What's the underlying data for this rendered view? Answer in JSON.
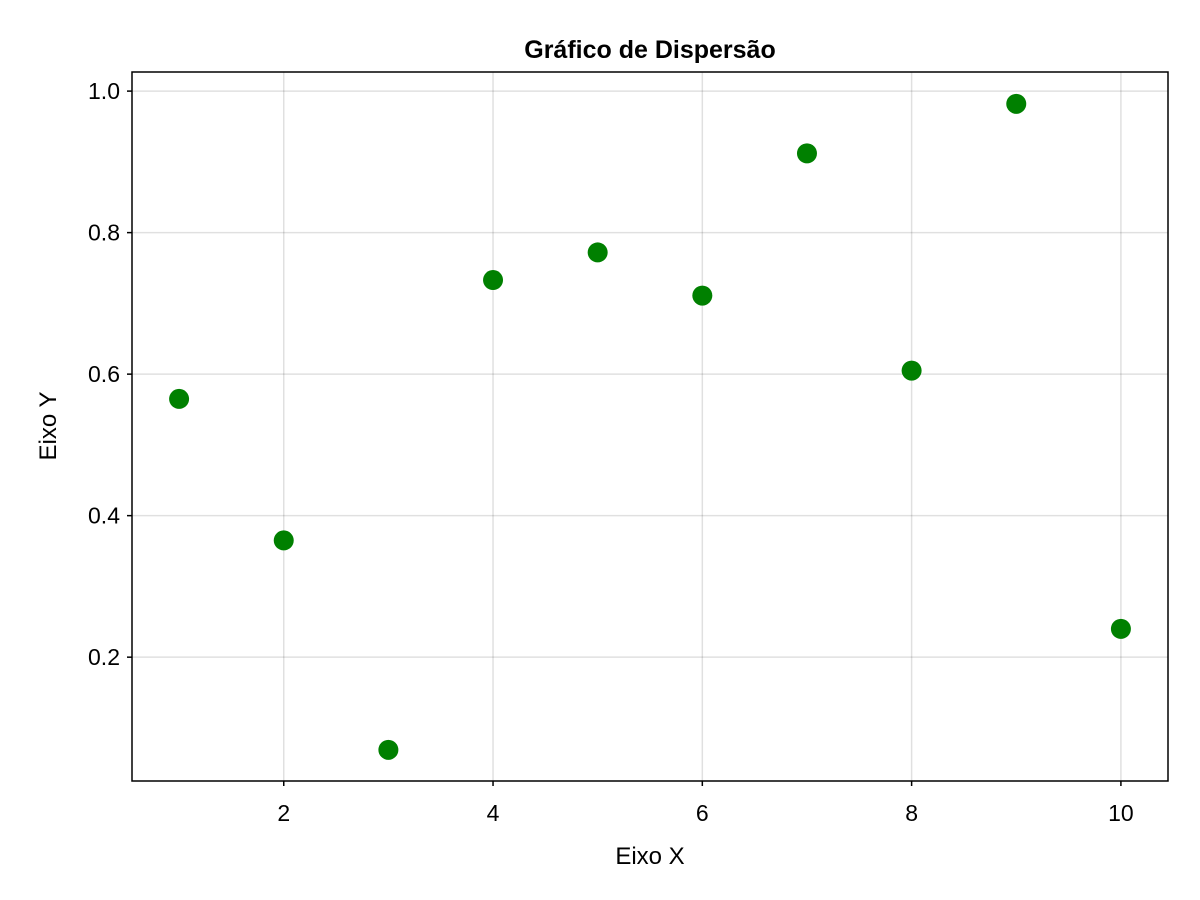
{
  "chart_data": {
    "type": "scatter",
    "title": "Gráfico de Dispersão",
    "xlabel": "Eixo X",
    "ylabel": "Eixo Y",
    "xlim": [
      0.55,
      10.45
    ],
    "ylim": [
      0.025,
      1.027
    ],
    "xticks": [
      2,
      4,
      6,
      8,
      10
    ],
    "xtick_labels": [
      "2",
      "4",
      "6",
      "8",
      "10"
    ],
    "yticks": [
      0.2,
      0.4,
      0.6,
      0.8,
      1.0
    ],
    "ytick_labels": [
      "0.2",
      "0.4",
      "0.6",
      "0.8",
      "1.0"
    ],
    "grid": true,
    "marker_color": "#008000",
    "series": [
      {
        "x": [
          1,
          2,
          3,
          4,
          5,
          6,
          7,
          8,
          9,
          10
        ],
        "y": [
          0.565,
          0.365,
          0.069,
          0.733,
          0.772,
          0.711,
          0.912,
          0.605,
          0.982,
          0.24
        ]
      }
    ]
  }
}
